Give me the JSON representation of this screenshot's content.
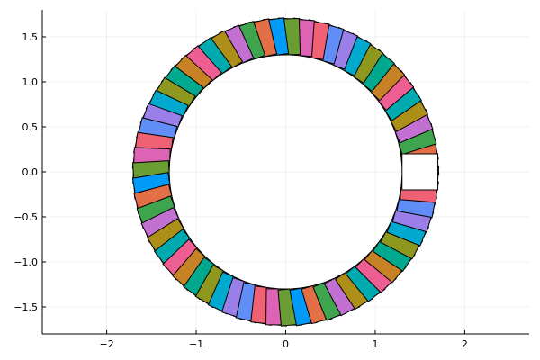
{
  "chart_data": {
    "type": "scatter",
    "description_of_marks": "Rotated filled square markers placed along a circle of radius 1.5 centred at the origin; marker n has its centre at angle n*0.1 rad and is rotated by n*0.1 rad. The last marker (n = 0) is drawn white.",
    "x_axis": {
      "ticks": [
        -2,
        -1,
        0,
        1,
        2
      ],
      "tick_labels": [
        "−2",
        "−1",
        "0",
        "1",
        "2"
      ],
      "range": [
        -2.72,
        2.72
      ]
    },
    "y_axis": {
      "ticks": [
        -1.5,
        -1.0,
        -0.5,
        0.0,
        0.5,
        1.0,
        1.5
      ],
      "tick_labels": [
        "−1.5",
        "−1.0",
        "−0.5",
        "0.0",
        "0.5",
        "1.0",
        "1.5"
      ],
      "range": [
        -1.8,
        1.8
      ]
    },
    "grid": true,
    "legend": "none",
    "circle_radius": 1.5,
    "square_side": 0.4,
    "n_markers": 63,
    "angle_step": 0.1,
    "palette": [
      "#009AFA",
      "#E36F47",
      "#3EA44E",
      "#C271D2",
      "#AC8E18",
      "#00AAAE",
      "#ED5E93",
      "#C68225",
      "#00A98D",
      "#8E971E",
      "#00A9CD",
      "#9B7FE9",
      "#618DF6",
      "#F06173",
      "#DD64B5",
      "#6B9E32"
    ],
    "last_marker_color": "#FFFFFF"
  }
}
